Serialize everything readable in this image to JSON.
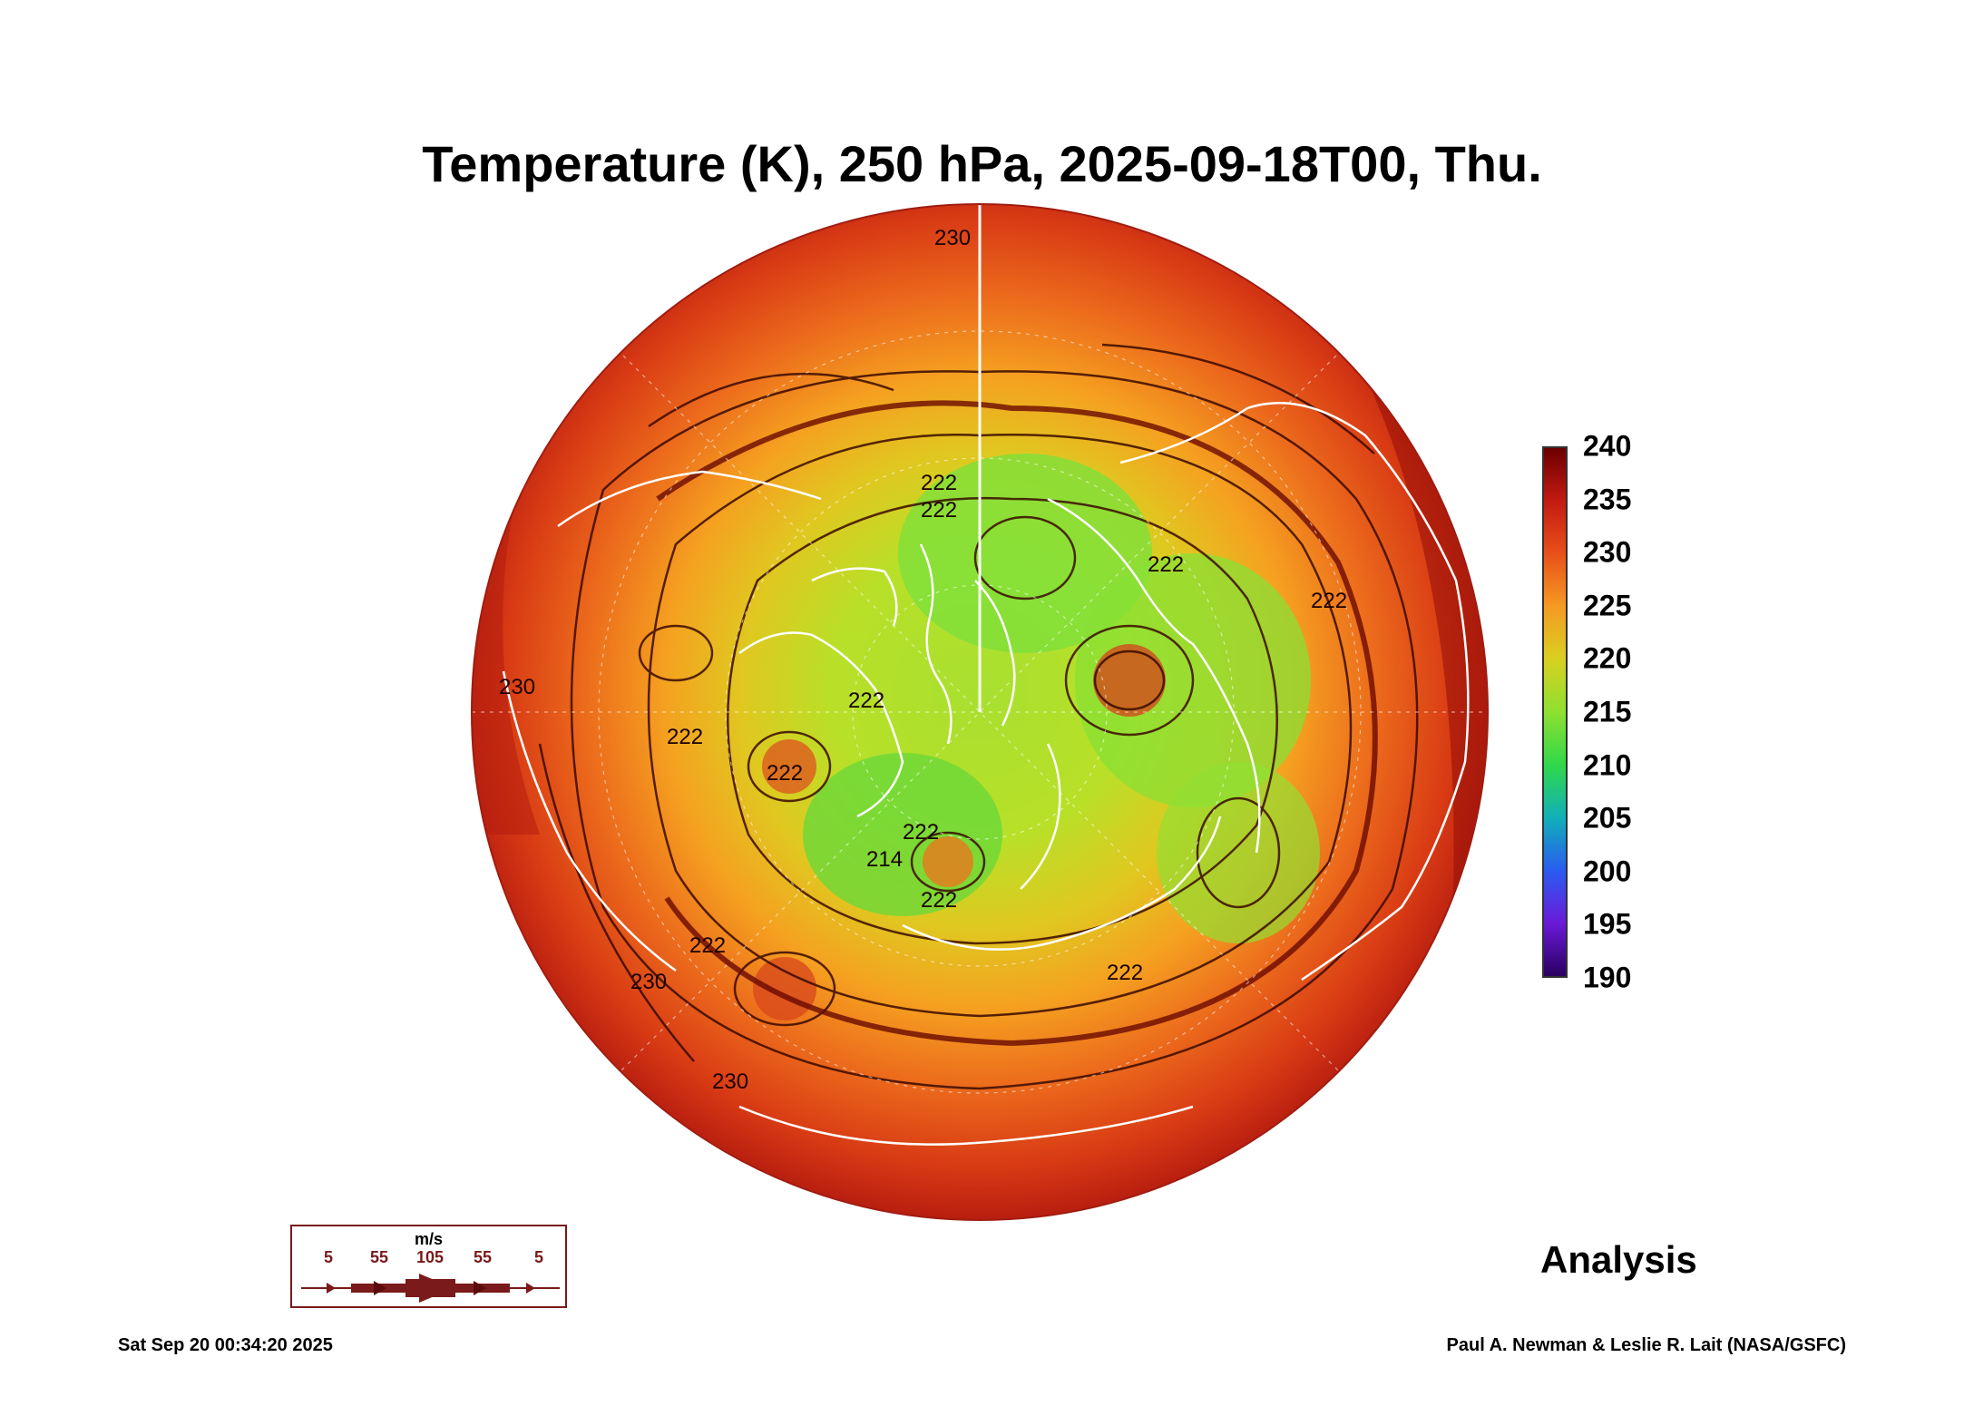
{
  "title": "Temperature (K), 250 hPa, 2025-09-18T00, Thu.",
  "colorbar": {
    "ticks": [
      "240",
      "235",
      "230",
      "225",
      "220",
      "215",
      "210",
      "205",
      "200",
      "195",
      "190"
    ],
    "min": 190,
    "max": 240,
    "colors": [
      "#6b0000",
      "#c41a12",
      "#e8501a",
      "#f59a22",
      "#d8d020",
      "#8ee030",
      "#30d84a",
      "#10b0b8",
      "#2a5cf0",
      "#6a1ad8",
      "#2a0060"
    ]
  },
  "contour_labels": [
    "230",
    "230",
    "230",
    "230",
    "222",
    "222",
    "222",
    "222",
    "222",
    "222",
    "222",
    "222",
    "214",
    "222",
    "222",
    "222"
  ],
  "wind_legend": {
    "unit": "m/s",
    "values": [
      "5",
      "55",
      "105",
      "55",
      "5"
    ]
  },
  "label": "Analysis",
  "footer": {
    "timestamp": "Sat Sep 20 00:34:20 2025",
    "credit": "Paul A. Newman & Leslie R. Lait (NASA/GSFC)"
  }
}
